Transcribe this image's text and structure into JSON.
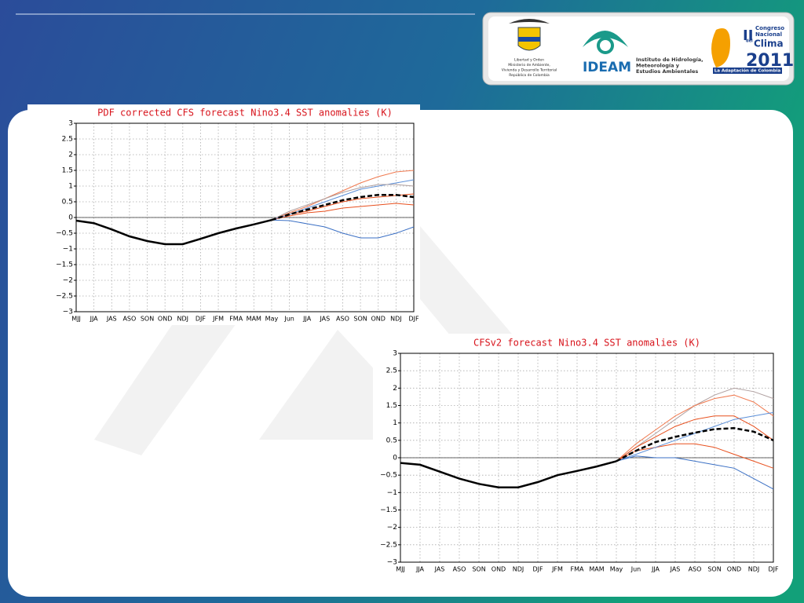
{
  "logos": {
    "ministry": [
      "Libertad y Orden",
      "Ministerio de Ambiente,",
      "Vivienda y Desarrollo Territorial",
      "República de Colombia"
    ],
    "ideam": "IDEAM",
    "institute": [
      "Instituto de Hidrología,",
      "Meteorología y",
      "Estudios Ambientales"
    ],
    "congress": [
      "II",
      "Congreso",
      "Nacional",
      "del",
      "Clima",
      "2011"
    ],
    "congress_banner": "La Adaptación de Colombia"
  },
  "chart_data": [
    {
      "type": "line",
      "title": "PDF corrected CFS forecast Nino3.4 SST anomalies (K)",
      "categories": [
        "MJJ",
        "JJA",
        "JAS",
        "ASO",
        "SON",
        "OND",
        "NDJ",
        "DJF",
        "JFM",
        "FMA",
        "MAM",
        "May",
        "Jun",
        "JJA",
        "JAS",
        "ASO",
        "SON",
        "OND",
        "NDJ",
        "DJF"
      ],
      "ylim": [
        -3,
        3
      ],
      "yticks": [
        {
          "value": -3,
          "label": "−3"
        },
        {
          "value": -2.5,
          "label": "−2.5"
        },
        {
          "value": -2,
          "label": "−2"
        },
        {
          "value": -1.5,
          "label": "−1.5"
        },
        {
          "value": -1,
          "label": "−1"
        },
        {
          "value": -0.5,
          "label": "−0.5"
        },
        0,
        0.5,
        1,
        1.5,
        2,
        2.5,
        3
      ],
      "grid": true,
      "zero_line": true,
      "series": [
        {
          "color": "#f07a50",
          "style": "thin",
          "values": [
            null,
            null,
            null,
            null,
            null,
            null,
            null,
            null,
            null,
            null,
            null,
            -0.08,
            0.15,
            0.35,
            0.6,
            0.85,
            1.1,
            1.3,
            1.45,
            1.5
          ]
        },
        {
          "color": "#e8501e",
          "style": "thin",
          "values": [
            null,
            null,
            null,
            null,
            null,
            null,
            null,
            null,
            null,
            null,
            null,
            -0.08,
            0.1,
            0.2,
            0.35,
            0.5,
            0.6,
            0.65,
            0.7,
            0.75
          ]
        },
        {
          "color": "#e8501e",
          "style": "thin",
          "values": [
            null,
            null,
            null,
            null,
            null,
            null,
            null,
            null,
            null,
            null,
            null,
            -0.08,
            0.05,
            0.15,
            0.2,
            0.3,
            0.35,
            0.4,
            0.45,
            0.4
          ]
        },
        {
          "color": "#3a6fc4",
          "style": "thin",
          "values": [
            null,
            null,
            null,
            null,
            null,
            null,
            null,
            null,
            null,
            null,
            null,
            -0.08,
            -0.1,
            -0.2,
            -0.3,
            -0.5,
            -0.65,
            -0.65,
            -0.5,
            -0.3
          ]
        },
        {
          "color": "#5b8fd8",
          "style": "thin",
          "values": [
            null,
            null,
            null,
            null,
            null,
            null,
            null,
            null,
            null,
            null,
            null,
            -0.08,
            0.1,
            0.3,
            0.5,
            0.7,
            0.9,
            1.0,
            1.1,
            1.2
          ]
        },
        {
          "color": "#b0a0a0",
          "style": "thin",
          "values": [
            null,
            null,
            null,
            null,
            null,
            null,
            null,
            null,
            null,
            null,
            null,
            -0.08,
            0.2,
            0.4,
            0.6,
            0.8,
            0.95,
            1.05,
            1.05,
            1.0
          ]
        },
        {
          "color": "#000000",
          "style": "bold",
          "values": [
            -0.1,
            -0.18,
            -0.38,
            -0.6,
            -0.75,
            -0.85,
            -0.85,
            -0.68,
            -0.5,
            -0.35,
            -0.22,
            -0.08,
            null,
            null,
            null,
            null,
            null,
            null,
            null,
            null
          ]
        },
        {
          "color": "#000000",
          "style": "dashed",
          "values": [
            null,
            null,
            null,
            null,
            null,
            null,
            null,
            null,
            null,
            null,
            null,
            -0.08,
            0.1,
            0.25,
            0.4,
            0.55,
            0.65,
            0.72,
            0.72,
            0.65
          ]
        }
      ]
    },
    {
      "type": "line",
      "title": "CFSv2 forecast Nino3.4 SST anomalies (K)",
      "categories": [
        "MJJ",
        "JJA",
        "JAS",
        "ASO",
        "SON",
        "OND",
        "NDJ",
        "DJF",
        "JFM",
        "FMA",
        "MAM",
        "May",
        "Jun",
        "JJA",
        "JAS",
        "ASO",
        "SON",
        "OND",
        "NDJ",
        "DJF"
      ],
      "ylim": [
        -3,
        3
      ],
      "yticks": [
        {
          "value": -3,
          "label": "−3"
        },
        {
          "value": -2.5,
          "label": "−2.5"
        },
        {
          "value": -2,
          "label": "−2"
        },
        {
          "value": -1.5,
          "label": "−1.5"
        },
        {
          "value": -1,
          "label": "−1"
        },
        {
          "value": -0.5,
          "label": "−0.5"
        },
        0,
        0.5,
        1,
        1.5,
        2,
        2.5,
        3
      ],
      "grid": true,
      "zero_line": true,
      "series": [
        {
          "color": "#b0a0a0",
          "style": "thin",
          "values": [
            null,
            null,
            null,
            null,
            null,
            null,
            null,
            null,
            null,
            null,
            null,
            -0.1,
            0.3,
            0.7,
            1.1,
            1.5,
            1.8,
            2.0,
            1.9,
            1.7
          ]
        },
        {
          "color": "#f07a50",
          "style": "thin",
          "values": [
            null,
            null,
            null,
            null,
            null,
            null,
            null,
            null,
            null,
            null,
            null,
            -0.1,
            0.4,
            0.8,
            1.2,
            1.5,
            1.7,
            1.8,
            1.6,
            1.2
          ]
        },
        {
          "color": "#e8501e",
          "style": "thin",
          "values": [
            null,
            null,
            null,
            null,
            null,
            null,
            null,
            null,
            null,
            null,
            null,
            -0.1,
            0.3,
            0.6,
            0.9,
            1.1,
            1.2,
            1.2,
            0.9,
            0.5
          ]
        },
        {
          "color": "#e8501e",
          "style": "thin",
          "values": [
            null,
            null,
            null,
            null,
            null,
            null,
            null,
            null,
            null,
            null,
            null,
            -0.1,
            0.2,
            0.3,
            0.4,
            0.4,
            0.3,
            0.1,
            -0.1,
            -0.3
          ]
        },
        {
          "color": "#3a6fc4",
          "style": "thin",
          "values": [
            null,
            null,
            null,
            null,
            null,
            null,
            null,
            null,
            null,
            null,
            null,
            -0.1,
            0.05,
            0.0,
            0.0,
            -0.1,
            -0.2,
            -0.3,
            -0.6,
            -0.9
          ]
        },
        {
          "color": "#5b8fd8",
          "style": "thin",
          "values": [
            null,
            null,
            null,
            null,
            null,
            null,
            null,
            null,
            null,
            null,
            null,
            -0.1,
            0.1,
            0.3,
            0.5,
            0.7,
            0.9,
            1.1,
            1.2,
            1.3
          ]
        },
        {
          "color": "#000000",
          "style": "bold",
          "values": [
            -0.15,
            -0.2,
            -0.4,
            -0.6,
            -0.75,
            -0.85,
            -0.85,
            -0.7,
            -0.5,
            -0.38,
            -0.25,
            -0.1,
            null,
            null,
            null,
            null,
            null,
            null,
            null,
            null
          ]
        },
        {
          "color": "#000000",
          "style": "dashed",
          "values": [
            null,
            null,
            null,
            null,
            null,
            null,
            null,
            null,
            null,
            null,
            null,
            -0.1,
            0.2,
            0.45,
            0.6,
            0.72,
            0.82,
            0.85,
            0.75,
            0.5
          ]
        }
      ]
    }
  ]
}
